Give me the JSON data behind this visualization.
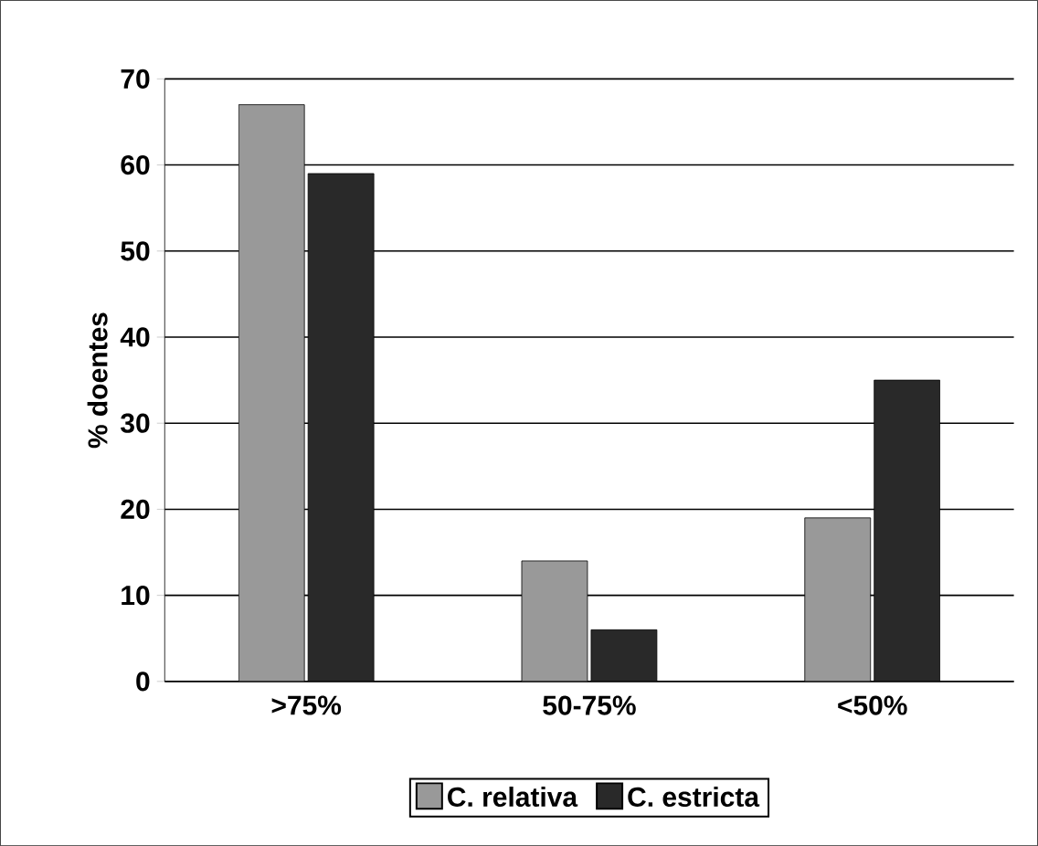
{
  "chart_data": {
    "type": "bar",
    "ylabel": "% doentes",
    "categories": [
      ">75%",
      "50-75%",
      "<50%"
    ],
    "series": [
      {
        "name": "C. relativa",
        "color": "#999999",
        "values": [
          67,
          14,
          19
        ]
      },
      {
        "name": "C. estricta",
        "color": "#292929",
        "values": [
          59,
          6,
          35
        ]
      }
    ],
    "ylim": [
      0,
      70
    ],
    "yticks": [
      0,
      10,
      20,
      30,
      40,
      50,
      60,
      70
    ],
    "grid": "y",
    "legend": "bottom"
  }
}
